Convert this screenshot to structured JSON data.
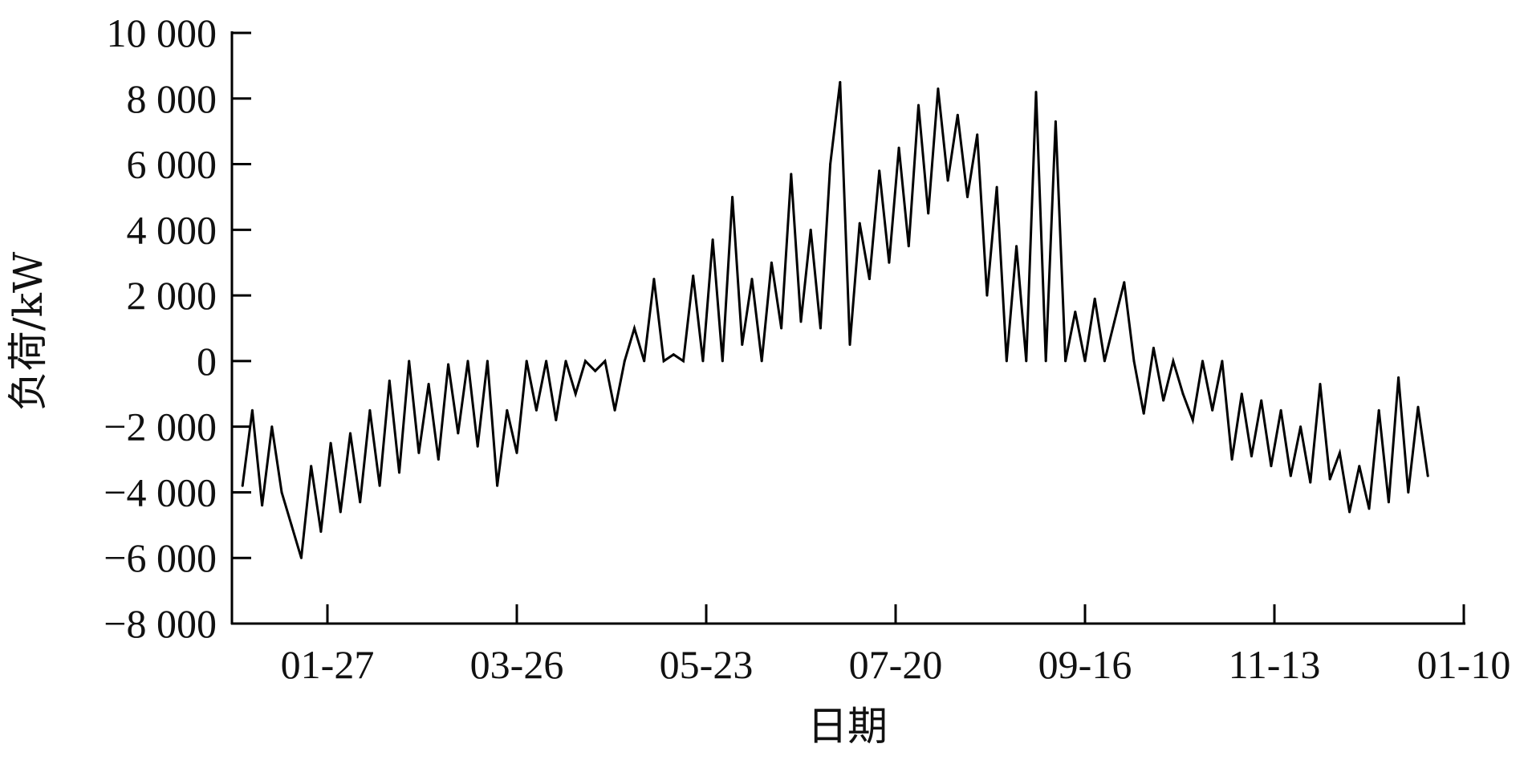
{
  "chart_data": {
    "type": "line",
    "title": "",
    "xlabel": "日期",
    "ylabel": "负荷/kW",
    "ylim": [
      -8000,
      10000
    ],
    "yticks": [
      10000,
      8000,
      6000,
      4000,
      2000,
      0,
      -2000,
      -4000,
      -6000,
      -8000
    ],
    "ytick_labels": [
      "10 000",
      "8 000",
      "6 000",
      "4 000",
      "2 000",
      "0",
      "−2 000",
      "−4 000",
      "−6 000",
      "−8 000"
    ],
    "xticks": [
      "01-27",
      "03-26",
      "05-23",
      "07-20",
      "09-16",
      "11-13",
      "01-10"
    ],
    "grid": false,
    "legend": "none",
    "line_color": "#000000",
    "series": [
      {
        "x": [
          "01-01",
          "01-04",
          "01-07",
          "01-10",
          "01-13",
          "01-16",
          "01-19",
          "01-22",
          "01-25",
          "01-28",
          "01-31",
          "02-03",
          "02-06",
          "02-09",
          "02-12",
          "02-15",
          "02-18",
          "02-21",
          "02-24",
          "02-27",
          "03-02",
          "03-05",
          "03-08",
          "03-11",
          "03-14",
          "03-17",
          "03-20",
          "03-23",
          "03-26",
          "03-29",
          "04-01",
          "04-04",
          "04-07",
          "04-10",
          "04-13",
          "04-16",
          "04-19",
          "04-22",
          "04-25",
          "04-28",
          "05-01",
          "05-04",
          "05-07",
          "05-10",
          "05-13",
          "05-16",
          "05-19",
          "05-22",
          "05-25",
          "05-28",
          "05-31",
          "06-03",
          "06-06",
          "06-09",
          "06-12",
          "06-15",
          "06-18",
          "06-21",
          "06-24",
          "06-27",
          "06-30",
          "07-03",
          "07-06",
          "07-09",
          "07-12",
          "07-15",
          "07-18",
          "07-21",
          "07-24",
          "07-27",
          "07-30",
          "08-02",
          "08-05",
          "08-08",
          "08-11",
          "08-14",
          "08-17",
          "08-20",
          "08-23",
          "08-26",
          "08-29",
          "09-01",
          "09-04",
          "09-07",
          "09-10",
          "09-13",
          "09-16",
          "09-19",
          "09-22",
          "09-25",
          "09-28",
          "10-01",
          "10-04",
          "10-07",
          "10-10",
          "10-13",
          "10-16",
          "10-19",
          "10-22",
          "10-25",
          "10-28",
          "10-31",
          "11-03",
          "11-06",
          "11-09",
          "11-12",
          "11-15",
          "11-18",
          "11-21",
          "11-24",
          "11-27",
          "11-30",
          "12-03",
          "12-06",
          "12-09",
          "12-12",
          "12-15",
          "12-18",
          "12-21",
          "12-24",
          "12-27",
          "12-30"
        ],
        "values": [
          -3800,
          -1500,
          -4400,
          -2000,
          -4000,
          -5000,
          -6000,
          -3200,
          -5200,
          -2500,
          -4600,
          -2200,
          -4300,
          -1500,
          -3800,
          -600,
          -3400,
          0,
          -2800,
          -700,
          -3000,
          -100,
          -2200,
          0,
          -2600,
          0,
          -3800,
          -1500,
          -2800,
          0,
          -1500,
          0,
          -1800,
          0,
          -1000,
          0,
          -300,
          0,
          -1500,
          0,
          1000,
          0,
          2500,
          0,
          200,
          0,
          2600,
          0,
          3700,
          0,
          5000,
          500,
          2500,
          0,
          3000,
          1000,
          5700,
          1200,
          4000,
          1000,
          6000,
          8500,
          500,
          4200,
          2500,
          5800,
          3000,
          6500,
          3500,
          7800,
          4500,
          8300,
          5500,
          7500,
          5000,
          6900,
          2000,
          5300,
          0,
          3500,
          0,
          8200,
          0,
          7300,
          0,
          1500,
          0,
          1900,
          0,
          1200,
          2400,
          0,
          -1600,
          400,
          -1200,
          0,
          -1000,
          -1800,
          0,
          -1500,
          0,
          -3000,
          -1000,
          -2900,
          -1200,
          -3200,
          -1500,
          -3500,
          -2000,
          -3700,
          -700,
          -3600,
          -2800,
          -4600,
          -3200,
          -4500,
          -1500,
          -4300,
          -500,
          -4000,
          -1400,
          -3500
        ]
      }
    ]
  }
}
